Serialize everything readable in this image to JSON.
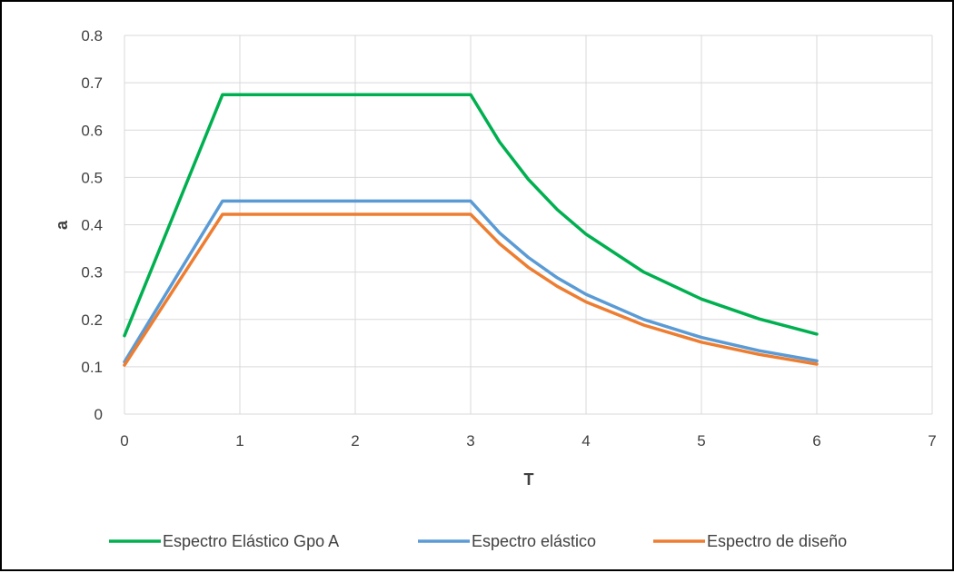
{
  "chart_data": {
    "type": "line",
    "title": "",
    "xlabel": "T",
    "ylabel": "a",
    "xlim": [
      0,
      7
    ],
    "ylim": [
      0,
      0.8
    ],
    "x_ticks": [
      0,
      1,
      2,
      3,
      4,
      5,
      6,
      7
    ],
    "y_ticks": [
      0,
      0.1,
      0.2,
      0.3,
      0.4,
      0.5,
      0.6,
      0.7,
      0.8
    ],
    "grid": true,
    "legend_position": "bottom",
    "series": [
      {
        "name": "Espectro Elástico Gpo A",
        "color": "#00B050",
        "x": [
          0,
          0.85,
          1,
          1.5,
          2,
          2.5,
          3,
          3.25,
          3.5,
          3.75,
          4,
          4.5,
          5,
          5.5,
          6
        ],
        "values": [
          0.1655,
          0.675,
          0.675,
          0.675,
          0.675,
          0.675,
          0.675,
          0.575,
          0.496,
          0.432,
          0.38,
          0.3,
          0.243,
          0.201,
          0.169
        ]
      },
      {
        "name": "Espectro elástico",
        "color": "#5B9BD5",
        "x": [
          0,
          0.85,
          1,
          1.5,
          2,
          2.5,
          3,
          3.25,
          3.5,
          3.75,
          4,
          4.5,
          5,
          5.5,
          6
        ],
        "values": [
          0.1103,
          0.45,
          0.45,
          0.45,
          0.45,
          0.45,
          0.45,
          0.383,
          0.331,
          0.288,
          0.253,
          0.2,
          0.162,
          0.134,
          0.1125
        ]
      },
      {
        "name": "Espectro de diseño",
        "color": "#ED7D31",
        "x": [
          0,
          0.85,
          1,
          1.5,
          2,
          2.5,
          3,
          3.25,
          3.5,
          3.75,
          4,
          4.5,
          5,
          5.5,
          6
        ],
        "values": [
          0.1035,
          0.422,
          0.422,
          0.422,
          0.422,
          0.422,
          0.422,
          0.36,
          0.31,
          0.27,
          0.237,
          0.188,
          0.152,
          0.126,
          0.1055
        ]
      }
    ]
  }
}
